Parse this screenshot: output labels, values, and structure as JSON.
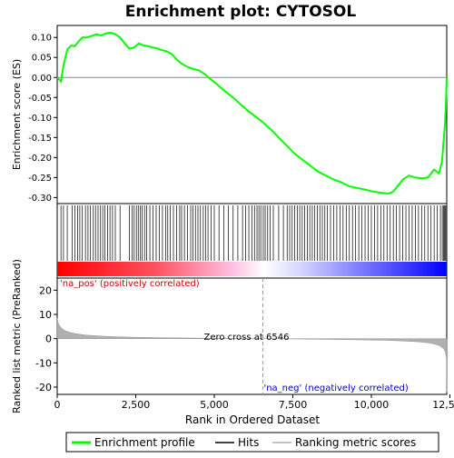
{
  "chart_data": {
    "type": "line",
    "title": "Enrichment plot: CYTOSOL",
    "top_panel": {
      "ylabel": "Enrichment score (ES)",
      "ylim": [
        -0.315,
        0.13
      ],
      "yticks": [
        0.1,
        0.05,
        0.0,
        -0.05,
        -0.1,
        -0.15,
        -0.2,
        -0.25,
        -0.3
      ],
      "ytick_labels": [
        "0.10",
        "0.05",
        "0.00",
        "-0.05",
        "-0.10",
        "-0.15",
        "-0.20",
        "-0.25",
        "-0.30"
      ],
      "series": {
        "name": "Enrichment profile",
        "color": "#00ff00",
        "x": [
          0,
          120,
          200,
          320,
          450,
          560,
          680,
          800,
          950,
          1100,
          1250,
          1400,
          1550,
          1700,
          1850,
          2000,
          2150,
          2300,
          2450,
          2600,
          2750,
          2900,
          3050,
          3200,
          3350,
          3500,
          3650,
          3800,
          3950,
          4100,
          4300,
          4500,
          4700,
          4900,
          5100,
          5350,
          5600,
          5850,
          6100,
          6350,
          6546,
          6800,
          7050,
          7300,
          7550,
          7800,
          8050,
          8300,
          8550,
          8800,
          9050,
          9300,
          9550,
          9800,
          10050,
          10300,
          10550,
          10700,
          10850,
          11000,
          11200,
          11400,
          11600,
          11800,
          12000,
          12150,
          12250,
          12300,
          12350,
          12380,
          12400
        ],
        "y": [
          0.0,
          -0.01,
          0.03,
          0.07,
          0.08,
          0.078,
          0.09,
          0.1,
          0.1,
          0.104,
          0.108,
          0.105,
          0.11,
          0.112,
          0.108,
          0.1,
          0.085,
          0.072,
          0.075,
          0.085,
          0.08,
          0.078,
          0.075,
          0.072,
          0.068,
          0.065,
          0.058,
          0.045,
          0.035,
          0.028,
          0.022,
          0.018,
          0.008,
          -0.005,
          -0.018,
          -0.035,
          -0.05,
          -0.068,
          -0.085,
          -0.1,
          -0.112,
          -0.13,
          -0.15,
          -0.17,
          -0.19,
          -0.205,
          -0.22,
          -0.235,
          -0.245,
          -0.255,
          -0.262,
          -0.272,
          -0.276,
          -0.28,
          -0.285,
          -0.288,
          -0.29,
          -0.285,
          -0.27,
          -0.255,
          -0.245,
          -0.25,
          -0.252,
          -0.25,
          -0.23,
          -0.24,
          -0.21,
          -0.16,
          -0.11,
          -0.05,
          0.0
        ]
      }
    },
    "hits_panel": {
      "legend_label": "Hits",
      "hit_ranks": [
        120,
        200,
        320,
        480,
        560,
        650,
        720,
        800,
        900,
        980,
        1060,
        1150,
        1220,
        1300,
        1380,
        1450,
        1520,
        1600,
        1680,
        1760,
        1850,
        2000,
        2300,
        2380,
        2450,
        2520,
        2580,
        2640,
        2700,
        2780,
        2850,
        2950,
        3050,
        3150,
        3250,
        3350,
        3450,
        3520,
        3600,
        3700,
        3800,
        3900,
        3960,
        4050,
        4150,
        4250,
        4320,
        4400,
        4480,
        4560,
        4650,
        4720,
        4800,
        4900,
        5000,
        5150,
        5300,
        5450,
        5600,
        5750,
        5900,
        6000,
        6100,
        6200,
        6280,
        6360,
        6420,
        6480,
        6560,
        6620,
        6700,
        6780,
        6880,
        7050,
        7200,
        7320,
        7400,
        7480,
        7560,
        7640,
        7720,
        7800,
        7880,
        7960,
        8040,
        8120,
        8200,
        8280,
        8360,
        8440,
        8520,
        8600,
        8700,
        8800,
        8900,
        9000,
        9100,
        9200,
        9300,
        9400,
        9500,
        9600,
        9700,
        9800,
        9900,
        10000,
        10100,
        10200,
        10300,
        10400,
        10500,
        10600,
        10700,
        10800,
        10900,
        11000,
        11100,
        11200,
        11300,
        11400,
        11500,
        11600,
        11700,
        11800,
        11900,
        12000,
        12100,
        12200,
        12260,
        12300,
        12330,
        12360,
        12390
      ]
    },
    "bottom_panel": {
      "xlabel": "Rank in Ordered Dataset",
      "ylabel": "Ranked list metric (PreRanked)",
      "xlim": [
        0,
        12400
      ],
      "ylim": [
        -23,
        25
      ],
      "xticks": [
        0,
        2500,
        5000,
        7500,
        10000,
        12500
      ],
      "xtick_labels": [
        "0",
        "2,500",
        "5,000",
        "7,500",
        "10,000",
        "12,500"
      ],
      "yticks": [
        20,
        10,
        0,
        -10,
        -20
      ],
      "ytick_labels": [
        "20",
        "10",
        "0",
        "-10",
        "-20"
      ],
      "zero_cross": 6546,
      "zero_cross_label": "Zero cross at 6546",
      "pos_label": "'na_pos' (positively correlated)",
      "neg_label": "'na_neg' (negatively correlated)",
      "metric_curve": {
        "x": [
          0,
          30,
          80,
          150,
          250,
          400,
          600,
          900,
          1300,
          1800,
          2500,
          3500,
          4500,
          5500,
          6546,
          7500,
          8500,
          9500,
          10500,
          11000,
          11500,
          11800,
          12000,
          12150,
          12250,
          12320,
          12360,
          12390,
          12400
        ],
        "y": [
          8.5,
          6.5,
          5.2,
          4.2,
          3.3,
          2.6,
          2.0,
          1.5,
          1.1,
          0.8,
          0.55,
          0.35,
          0.2,
          0.08,
          0.0,
          -0.12,
          -0.28,
          -0.45,
          -0.7,
          -0.95,
          -1.3,
          -1.7,
          -2.2,
          -2.8,
          -3.6,
          -4.5,
          -5.5,
          -8,
          -22
        ]
      }
    },
    "legend": {
      "placement": "bottom",
      "items": [
        {
          "label": "Enrichment profile",
          "color": "#00ff00"
        },
        {
          "label": "Hits",
          "color": "#000000"
        },
        {
          "label": "Ranking metric scores",
          "color": "#b0b0b0"
        }
      ]
    },
    "colors": {
      "pos_color": "#ff0000",
      "neg_color": "#0000ff",
      "metric_fill": "#b0b0b0",
      "label_pos": "#cc0000",
      "label_neg": "#0000cc"
    }
  }
}
